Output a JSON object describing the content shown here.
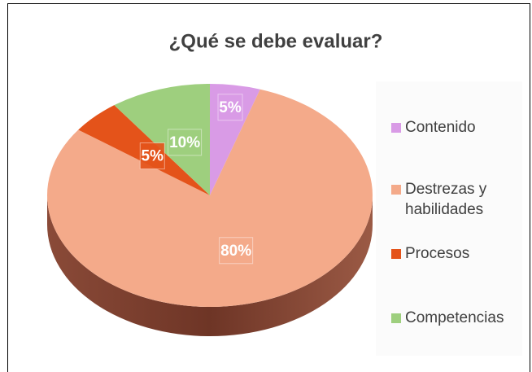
{
  "chart_data": {
    "type": "pie",
    "title": "¿Qué se debe evaluar?",
    "categories": [
      "Contenido",
      "Destrezas y habilidades",
      "Procesos",
      "Competencias"
    ],
    "values": [
      5,
      80,
      5,
      10
    ],
    "value_labels": [
      "5%",
      "80%",
      "5%",
      "10%"
    ],
    "colors": [
      "#d99be6",
      "#f4aa8a",
      "#e4531a",
      "#9ecf7e"
    ],
    "legend": "right"
  }
}
